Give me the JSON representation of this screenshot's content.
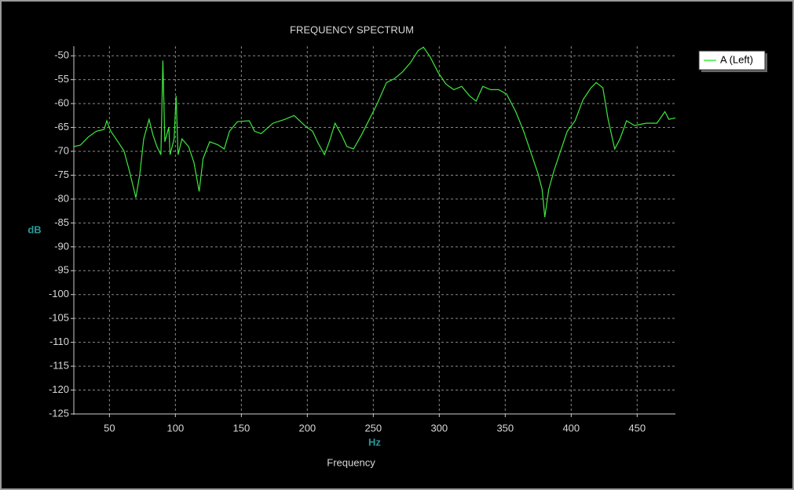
{
  "chart_data": {
    "type": "line",
    "title": "FREQUENCY SPECTRUM",
    "x_label": "Frequency",
    "x_unit": "Hz",
    "y_label": "dB",
    "xlim": [
      23,
      479
    ],
    "ylim": [
      -125,
      -48
    ],
    "xticks": [
      50,
      100,
      150,
      200,
      250,
      300,
      350,
      400,
      450
    ],
    "yticks": [
      -50,
      -55,
      -60,
      -65,
      -70,
      -75,
      -80,
      -85,
      -90,
      -95,
      -100,
      -105,
      -110,
      -115,
      -120,
      -125
    ],
    "grid": true,
    "legend": "top-right",
    "x": [
      23,
      28,
      34,
      40,
      46,
      48,
      51,
      55,
      61,
      65,
      70,
      73,
      76,
      80,
      83,
      86,
      89,
      90.5,
      92,
      95,
      96,
      99,
      100.5,
      102,
      105,
      110,
      114,
      118,
      121,
      126,
      132,
      137,
      141,
      147,
      156,
      160,
      165,
      174,
      183,
      190,
      198,
      204,
      208,
      213,
      217,
      221,
      226,
      230,
      235,
      241,
      247,
      253,
      260,
      266,
      272,
      278,
      284,
      288,
      293,
      299,
      305,
      311,
      317,
      323,
      328,
      333,
      339,
      345,
      351,
      358,
      364,
      370,
      375,
      378,
      380,
      383,
      387,
      391,
      397,
      403,
      409,
      415,
      419,
      424,
      428,
      433,
      437,
      442,
      448,
      457,
      465,
      471,
      474,
      479
    ],
    "series": [
      {
        "name": "A (Left)",
        "color": "#3ee83e",
        "values": [
          -69,
          -68.7,
          -67,
          -65.8,
          -65.4,
          -63.6,
          -65.8,
          -67.4,
          -69.9,
          -74,
          -79.7,
          -74.8,
          -67.4,
          -63.3,
          -66.6,
          -69,
          -70.7,
          -51,
          -68,
          -65,
          -70.7,
          -67.4,
          -58.4,
          -70.7,
          -67.4,
          -69,
          -72.3,
          -78.4,
          -71.5,
          -68,
          -68.6,
          -69.5,
          -65.8,
          -63.8,
          -63.6,
          -65.8,
          -66.3,
          -64.1,
          -63.3,
          -62.5,
          -64.6,
          -65.8,
          -68.2,
          -70.7,
          -67.7,
          -64.1,
          -66.6,
          -69,
          -69.5,
          -66.6,
          -63.3,
          -60,
          -55.6,
          -54.8,
          -53.4,
          -51.5,
          -48.9,
          -48.2,
          -50.2,
          -53.4,
          -55.9,
          -57.1,
          -56.4,
          -58.4,
          -59.5,
          -56.4,
          -57.1,
          -57.1,
          -58,
          -61.7,
          -65.8,
          -70.7,
          -74.8,
          -78,
          -83.8,
          -78,
          -74,
          -70.7,
          -65.8,
          -63.6,
          -59.2,
          -56.7,
          -55.6,
          -56.7,
          -63.3,
          -69.5,
          -67.4,
          -63.6,
          -64.6,
          -64.1,
          -64.1,
          -61.7,
          -63.3,
          -63
        ]
      }
    ]
  }
}
